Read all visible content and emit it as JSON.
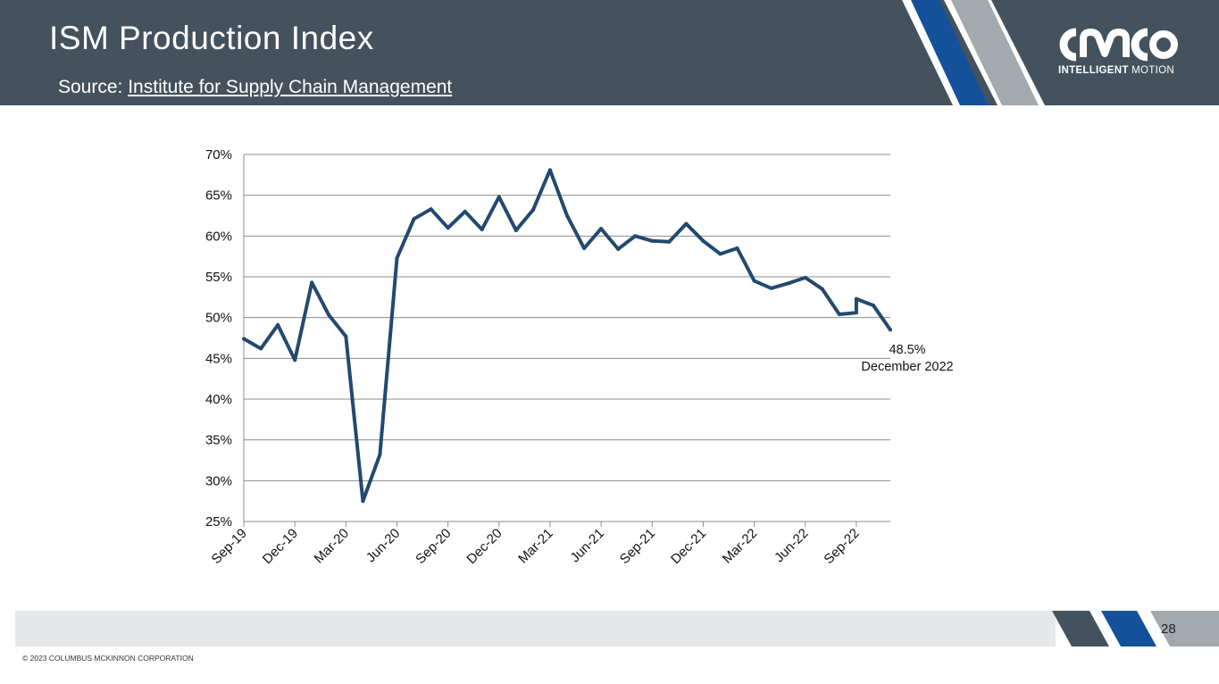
{
  "header": {
    "title": "ISM Production Index",
    "source_prefix": "Source: ",
    "source_link": "Institute for Supply Chain Management"
  },
  "logo": {
    "mark_text": "CMCO",
    "tagline_bold": "INTELLIGENT",
    "tagline_rest": " MOTION"
  },
  "footer": {
    "page_number": "28",
    "copyright": "© 2023 COLUMBUS MCKINNON CORPORATION"
  },
  "colors": {
    "header_bg": "#43525d",
    "line": "#23496f",
    "stripe_blue": "#14519a",
    "stripe_gray": "#a4a9ad",
    "grid": "#8c8c8c"
  },
  "chart_data": {
    "type": "line",
    "title": "ISM Production Index",
    "xlabel": "",
    "ylabel": "",
    "ylim": [
      25,
      70
    ],
    "y_ticks": [
      "25%",
      "30%",
      "35%",
      "40%",
      "45%",
      "50%",
      "55%",
      "60%",
      "65%",
      "70%"
    ],
    "y_tick_values": [
      25,
      30,
      35,
      40,
      45,
      50,
      55,
      60,
      65,
      70
    ],
    "x_tick_labels": [
      "Sep-19",
      "Dec-19",
      "Mar-20",
      "Jun-20",
      "Sep-20",
      "Dec-20",
      "Mar-21",
      "Jun-21",
      "Sep-21",
      "Dec-21",
      "Mar-22",
      "Jun-22",
      "Sep-22"
    ],
    "x_tick_indices": [
      0,
      3,
      6,
      9,
      12,
      15,
      18,
      21,
      24,
      27,
      30,
      33,
      36
    ],
    "grid": "horizontal",
    "series": [
      {
        "name": "ISM Production Index",
        "x": [
          0,
          1,
          2,
          3,
          4,
          5,
          6,
          7,
          8,
          9,
          10,
          11,
          12,
          13,
          14,
          15,
          16,
          17,
          18,
          19,
          20,
          21,
          22,
          23,
          24,
          25,
          26,
          27,
          28,
          29,
          30,
          31,
          32,
          33,
          34,
          35,
          36,
          36,
          37,
          38
        ],
        "values": [
          47.4,
          46.2,
          49.1,
          44.8,
          54.3,
          50.3,
          47.7,
          27.5,
          33.2,
          57.3,
          62.1,
          63.3,
          61.0,
          63.0,
          60.8,
          64.8,
          60.7,
          63.2,
          68.1,
          62.5,
          58.5,
          60.9,
          58.4,
          60.0,
          59.4,
          59.3,
          61.5,
          59.4,
          57.8,
          58.5,
          54.5,
          53.6,
          54.2,
          54.9,
          53.5,
          50.4,
          50.6,
          52.3,
          51.5,
          48.5
        ]
      }
    ],
    "annotations": [
      {
        "value_label": "48.5%",
        "date_label": "December 2022"
      }
    ]
  }
}
